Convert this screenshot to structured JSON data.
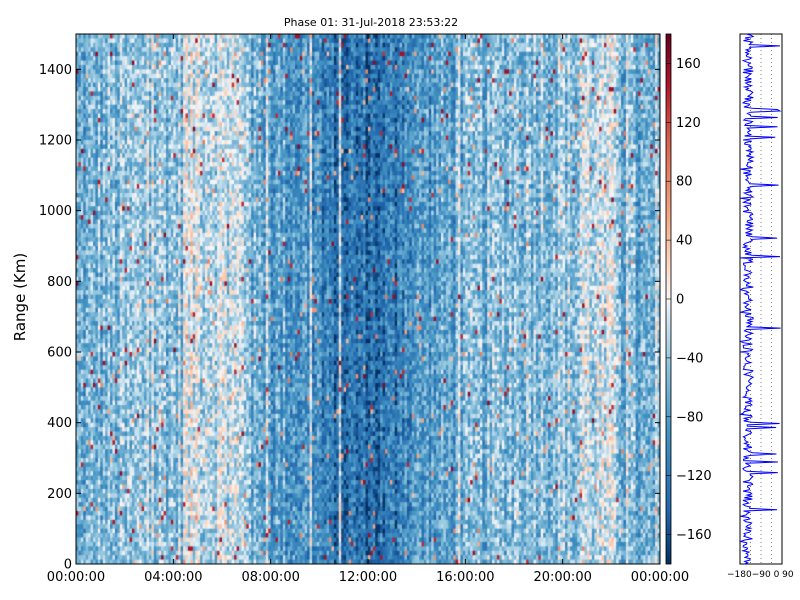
{
  "chart_data": [
    {
      "type": "heatmap",
      "title": "Phase 01: 31-Jul-2018 23:53:22",
      "xlabel": "",
      "ylabel": "Range (Km)",
      "x_range": [
        "00:00:00",
        "24:00:00"
      ],
      "y_range": [
        0,
        1500
      ],
      "x_ticks": [
        "00:00:00",
        "04:00:00",
        "08:00:00",
        "12:00:00",
        "16:00:00",
        "20:00:00",
        "00:00:00"
      ],
      "y_ticks": [
        0,
        200,
        400,
        600,
        800,
        1000,
        1200,
        1400
      ],
      "colorbar": {
        "range": [
          -180,
          180
        ],
        "ticks": [
          -160,
          -120,
          -80,
          -40,
          0,
          40,
          80,
          120,
          160
        ],
        "labels": [
          "−160",
          "−120",
          "−80",
          "−40",
          "0",
          "40",
          "80",
          "120",
          "160"
        ],
        "colormap": "RdBu_r"
      },
      "typical_value": -110,
      "notes_visible": "phase values mostly between -160 and -40 deg with sparse positive outliers"
    },
    {
      "type": "line",
      "series_color": "#0000ff",
      "x_range": [
        -180,
        180
      ],
      "y_range": [
        0,
        1500
      ],
      "x_tick_labels_text": "−180−90 0  90",
      "grid": true
    }
  ]
}
